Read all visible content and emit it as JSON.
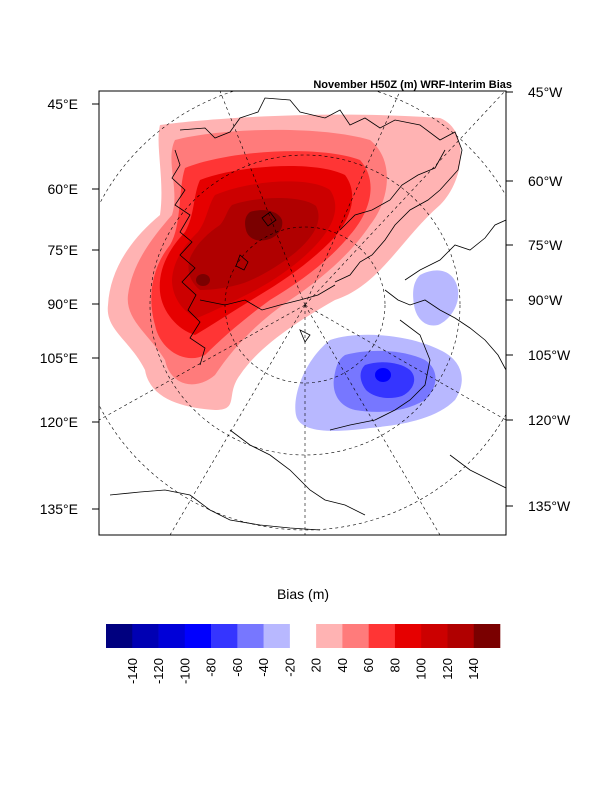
{
  "title": "November H50Z (m) WRF-Interim Bias",
  "left_lat_labels": [
    "45°E",
    "60°E",
    "75°E",
    "90°E",
    "105°E",
    "120°E",
    "135°E"
  ],
  "right_lat_labels": [
    "45°W",
    "60°W",
    "75°W",
    "90°W",
    "105°W",
    "120°W",
    "135°W"
  ],
  "colorbar": {
    "title": "Bias (m)",
    "tick_labels": [
      "-140",
      "-120",
      "-100",
      "-80",
      "-60",
      "-40",
      "-20",
      "20",
      "40",
      "60",
      "80",
      "100",
      "120",
      "140"
    ],
    "colors": [
      "#00007f",
      "#0000b3",
      "#0000d8",
      "#0000ff",
      "#3535ff",
      "#7777ff",
      "#b8b8ff",
      "#ffffff",
      "#ffb3b3",
      "#ff7b7b",
      "#ff3535",
      "#e60000",
      "#cc0000",
      "#b00000",
      "#7a0000"
    ]
  },
  "legend_colors": {
    "land_outline": "#000000",
    "graticule": "#000000"
  }
}
